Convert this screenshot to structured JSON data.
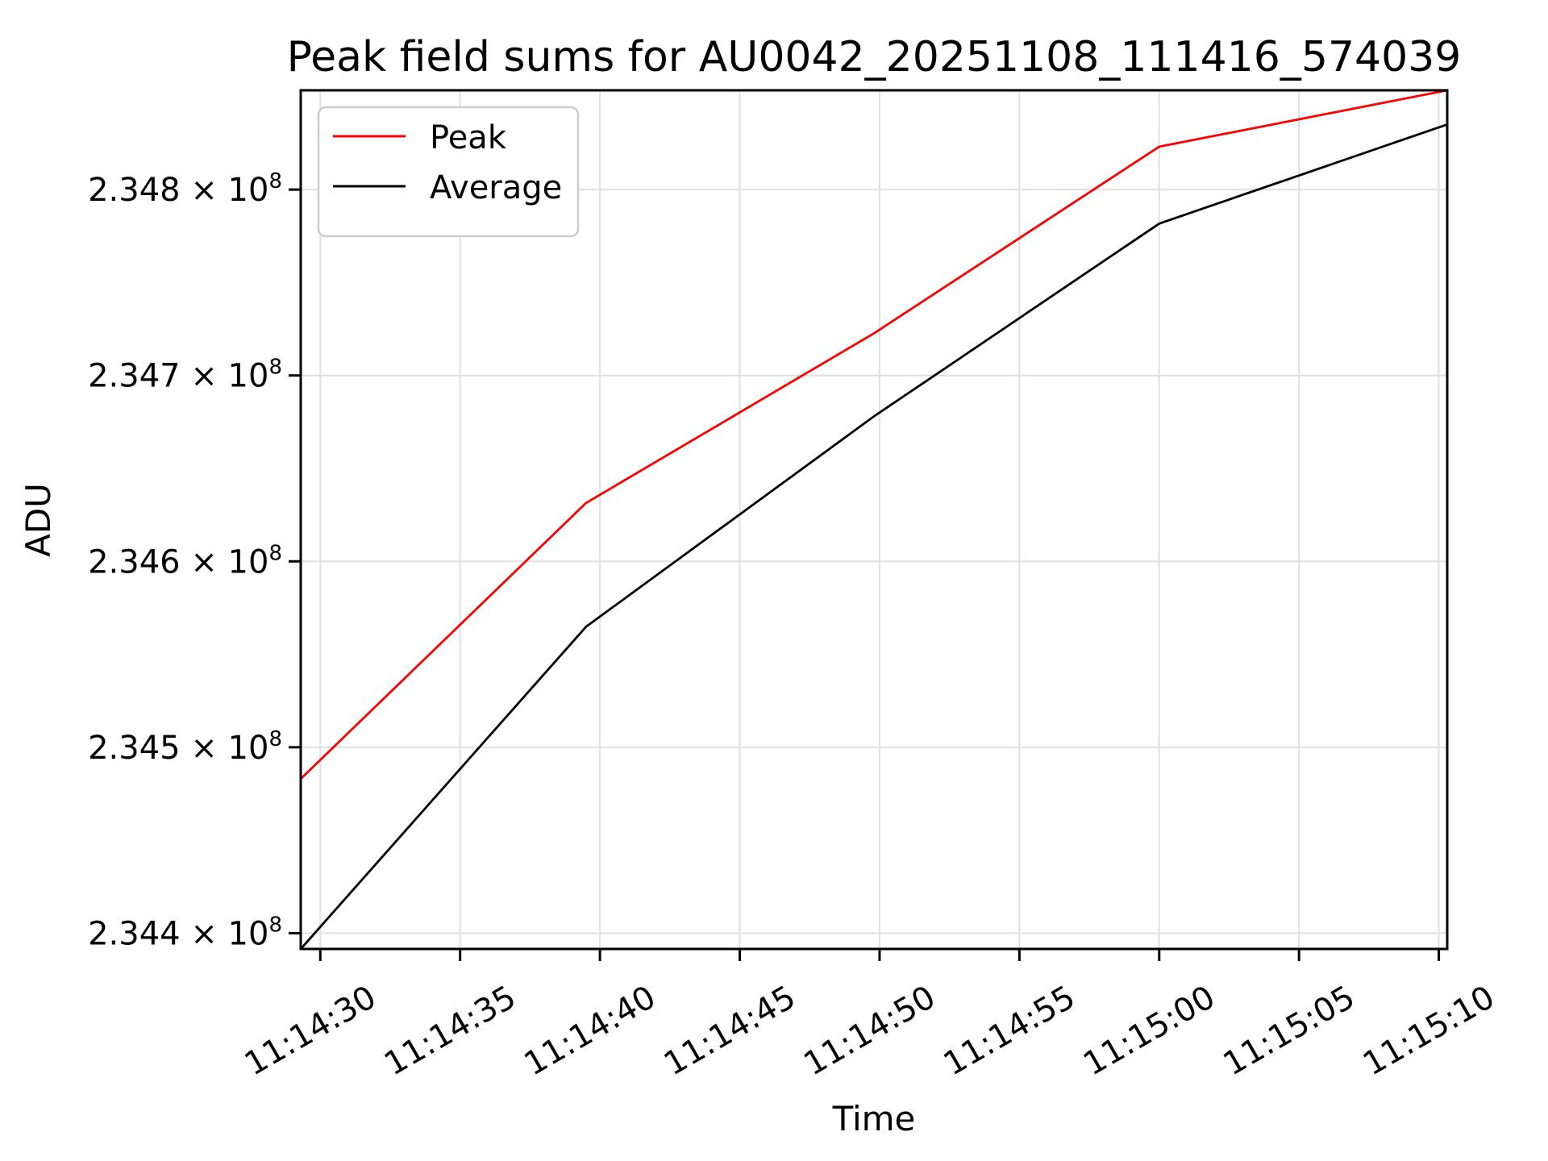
{
  "figure": {
    "title": "Peak field sums for AU0042_20251108_111416_574039",
    "xlabel": "Time",
    "ylabel": "ADU"
  },
  "legend": {
    "position": "upper left",
    "items": [
      {
        "label": "Peak",
        "color": "#ff0000"
      },
      {
        "label": "Average",
        "color": "#000000"
      }
    ]
  },
  "chart_data": {
    "type": "line",
    "title": "Peak field sums for AU0042_20251108_111416_574039",
    "xlabel": "Time",
    "ylabel": "ADU",
    "grid": true,
    "legend_position": "upper left",
    "x_axis": {
      "tick_labels": [
        "11:14:30",
        "11:14:35",
        "11:14:40",
        "11:14:45",
        "11:14:50",
        "11:14:55",
        "11:15:00",
        "11:15:05",
        "11:15:10"
      ],
      "tick_seconds_after_11_14_00": [
        30,
        35,
        40,
        45,
        50,
        55,
        60,
        65,
        70
      ],
      "xlim_seconds_after_11_14_00": [
        29.3,
        70.3
      ],
      "tick_rotation_deg": 30
    },
    "y_axis": {
      "tick_mantissas": [
        "2.344",
        "2.345",
        "2.346",
        "2.347",
        "2.348"
      ],
      "tick_suffix": " × 10",
      "tick_exponent": "8",
      "tick_values": [
        234400000,
        234500000,
        234600000,
        234700000,
        234800000
      ],
      "ylim": [
        234391500,
        234853400
      ]
    },
    "x_seconds_after_11_14_00": [
      29.3,
      39.5,
      49.8,
      60.0,
      70.3
    ],
    "series": [
      {
        "name": "Peak",
        "color": "#ff0000",
        "values": [
          234483000,
          234631400,
          234722700,
          234823100,
          234853400
        ]
      },
      {
        "name": "Average",
        "color": "#000000",
        "values": [
          234391500,
          234564800,
          234678000,
          234781700,
          234835000
        ]
      }
    ]
  },
  "colors": {
    "background": "#ffffff",
    "spine": "#000000",
    "grid": "#e0e0e0",
    "legend_border": "#cccccc"
  }
}
